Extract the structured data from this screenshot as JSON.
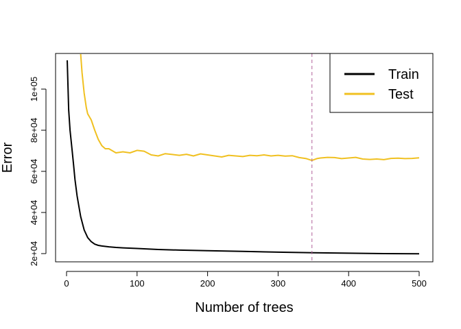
{
  "chart_data": {
    "type": "line",
    "xlabel": "Number of trees",
    "ylabel": "Error",
    "xlim": [
      0,
      500
    ],
    "ylim": [
      20000,
      115000
    ],
    "x_ticks": [
      0,
      100,
      200,
      300,
      400,
      500
    ],
    "x_tick_labels": [
      "0",
      "100",
      "200",
      "300",
      "400",
      "500"
    ],
    "y_ticks": [
      20000,
      40000,
      60000,
      80000,
      100000
    ],
    "y_tick_labels": [
      "2e+04",
      "4e+04",
      "6e+04",
      "8e+04",
      "1e+05"
    ],
    "vline": {
      "x": 348,
      "color": "#b0609a"
    },
    "legend_position": "top-right",
    "series": [
      {
        "name": "Train",
        "color": "#000000",
        "x": [
          1,
          3,
          5,
          8,
          10,
          12,
          15,
          18,
          20,
          25,
          30,
          35,
          40,
          45,
          50,
          60,
          70,
          80,
          100,
          130,
          160,
          200,
          250,
          300,
          350,
          400,
          450,
          500
        ],
        "y": [
          114000,
          90000,
          80000,
          70000,
          63000,
          56000,
          48000,
          42000,
          38000,
          31500,
          27800,
          25800,
          24600,
          24000,
          23700,
          23300,
          23000,
          22800,
          22500,
          22000,
          21700,
          21400,
          21100,
          20700,
          20400,
          20200,
          20000,
          19900
        ]
      },
      {
        "name": "Test",
        "color": "#f0c020",
        "x": [
          20,
          22,
          25,
          28,
          30,
          35,
          40,
          45,
          50,
          55,
          60,
          70,
          80,
          90,
          100,
          110,
          120,
          130,
          140,
          150,
          160,
          170,
          180,
          190,
          200,
          210,
          220,
          230,
          240,
          250,
          260,
          270,
          280,
          290,
          300,
          310,
          320,
          330,
          340,
          348,
          355,
          360,
          370,
          380,
          390,
          400,
          410,
          420,
          430,
          440,
          450,
          460,
          470,
          480,
          490,
          500
        ],
        "y": [
          117000,
          108000,
          98000,
          91000,
          88000,
          85000,
          80000,
          75500,
          72500,
          71000,
          71000,
          69000,
          69500,
          69000,
          70200,
          69800,
          68000,
          67500,
          68600,
          68200,
          67800,
          68300,
          67500,
          68500,
          68000,
          67500,
          67000,
          67800,
          67500,
          67200,
          67800,
          67600,
          68000,
          67500,
          67800,
          67400,
          67600,
          66700,
          66200,
          65300,
          66200,
          66500,
          66800,
          66700,
          66200,
          66500,
          66800,
          66000,
          65800,
          66000,
          65700,
          66300,
          66400,
          66200,
          66300,
          66600
        ]
      }
    ]
  }
}
